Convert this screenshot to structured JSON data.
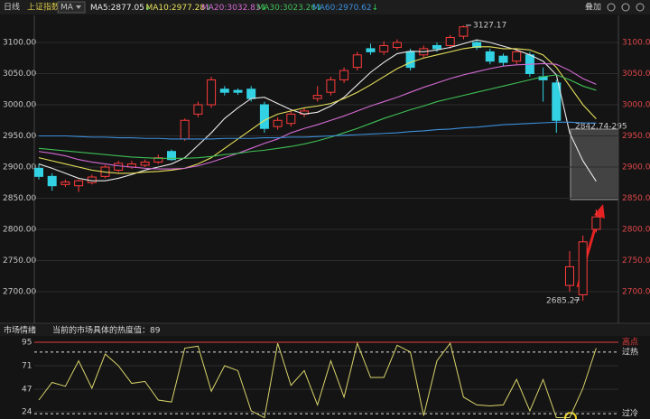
{
  "header": {
    "period": "日线",
    "index": "上证指数",
    "indicator": "MA",
    "toolbar": "叠加"
  },
  "chart_data": [
    {
      "type": "candlestick",
      "ohlc": [
        [
          2898,
          2905,
          2880,
          2885
        ],
        [
          2885,
          2890,
          2862,
          2870
        ],
        [
          2872,
          2880,
          2868,
          2876
        ],
        [
          2870,
          2880,
          2860,
          2878
        ],
        [
          2875,
          2888,
          2872,
          2884
        ],
        [
          2885,
          2903,
          2882,
          2900
        ],
        [
          2895,
          2910,
          2892,
          2906
        ],
        [
          2900,
          2910,
          2897,
          2905
        ],
        [
          2903,
          2912,
          2900,
          2908
        ],
        [
          2908,
          2920,
          2905,
          2915
        ],
        [
          2925,
          2928,
          2910,
          2912
        ],
        [
          2945,
          2978,
          2942,
          2975
        ],
        [
          2985,
          3005,
          2980,
          3000
        ],
        [
          3000,
          3045,
          2995,
          3040
        ],
        [
          3025,
          3030,
          3015,
          3020
        ],
        [
          3023,
          3026,
          3016,
          3020
        ],
        [
          3025,
          3030,
          3005,
          3010
        ],
        [
          3000,
          3005,
          2955,
          2962
        ],
        [
          2965,
          2980,
          2960,
          2975
        ],
        [
          2970,
          2990,
          2965,
          2985
        ],
        [
          2985,
          2995,
          2980,
          2990
        ],
        [
          3010,
          3030,
          3005,
          3015
        ],
        [
          3020,
          3045,
          3015,
          3040
        ],
        [
          3040,
          3060,
          3035,
          3055
        ],
        [
          3060,
          3085,
          3055,
          3080
        ],
        [
          3090,
          3098,
          3080,
          3085
        ],
        [
          3085,
          3102,
          3080,
          3095
        ],
        [
          3092,
          3105,
          3088,
          3100
        ],
        [
          3085,
          3090,
          3055,
          3060
        ],
        [
          3080,
          3095,
          3075,
          3090
        ],
        [
          3095,
          3100,
          3085,
          3090
        ],
        [
          3095,
          3112,
          3090,
          3108
        ],
        [
          3110,
          3127.17,
          3105,
          3125
        ],
        [
          3100,
          3105,
          3088,
          3092
        ],
        [
          3085,
          3090,
          3065,
          3070
        ],
        [
          3078,
          3082,
          3062,
          3068
        ],
        [
          3070,
          3090,
          3065,
          3085
        ],
        [
          3080,
          3085,
          3045,
          3050
        ],
        [
          3045,
          3060,
          3005,
          3040
        ],
        [
          3035,
          3040,
          2955,
          2975
        ],
        [
          2710,
          2765,
          2700,
          2740
        ],
        [
          2695,
          2790,
          2685.27,
          2780
        ],
        [
          2800,
          2832,
          2795,
          2820
        ]
      ],
      "up_color": "#ff3b3b",
      "down_color": "#32d2e4",
      "series": [
        {
          "name": "MA5:2877.05",
          "trend": "↓",
          "color": "#e8e8e8",
          "values": [
            2905,
            2898,
            2890,
            2882,
            2878,
            2878,
            2882,
            2888,
            2895,
            2900,
            2905,
            2915,
            2935,
            2955,
            2978,
            2995,
            3010,
            3012,
            3002,
            2992,
            2985,
            2988,
            2998,
            3012,
            3032,
            3052,
            3068,
            3082,
            3086,
            3085,
            3088,
            3092,
            3098,
            3104,
            3100,
            3094,
            3088,
            3080,
            3070,
            3048,
            2955,
            2910,
            2877.05
          ]
        },
        {
          "name": "MA10:2977.28",
          "trend": "↓",
          "color": "#e6e05a",
          "values": [
            2915,
            2910,
            2905,
            2900,
            2895,
            2892,
            2890,
            2890,
            2892,
            2893,
            2895,
            2898,
            2905,
            2915,
            2930,
            2945,
            2960,
            2975,
            2985,
            2990,
            2995,
            2998,
            3002,
            3010,
            3020,
            3032,
            3045,
            3058,
            3068,
            3075,
            3080,
            3085,
            3090,
            3093,
            3093,
            3090,
            3090,
            3088,
            3080,
            3060,
            3030,
            3000,
            2977.28
          ]
        },
        {
          "name": "MA20:3032.83",
          "trend": "↓",
          "color": "#d46ad4",
          "values": [
            2925,
            2922,
            2918,
            2912,
            2908,
            2905,
            2902,
            2900,
            2898,
            2897,
            2897,
            2898,
            2902,
            2908,
            2915,
            2922,
            2930,
            2938,
            2945,
            2955,
            2962,
            2968,
            2975,
            2982,
            2990,
            2998,
            3005,
            3012,
            3020,
            3028,
            3035,
            3042,
            3048,
            3053,
            3058,
            3062,
            3064,
            3065,
            3066,
            3065,
            3055,
            3042,
            3032.83
          ]
        },
        {
          "name": "MA30:3023.26",
          "trend": "↓",
          "color": "#3fbf55",
          "values": [
            2930,
            2928,
            2926,
            2924,
            2922,
            2920,
            2918,
            2916,
            2915,
            2914,
            2914,
            2914,
            2915,
            2917,
            2920,
            2922,
            2925,
            2927,
            2930,
            2933,
            2937,
            2942,
            2948,
            2955,
            2962,
            2970,
            2978,
            2985,
            2992,
            2998,
            3005,
            3010,
            3015,
            3020,
            3025,
            3030,
            3035,
            3040,
            3045,
            3048,
            3040,
            3030,
            3023.26
          ]
        },
        {
          "name": "MA60:2970.62",
          "trend": "↓",
          "color": "#3c8fdc",
          "values": [
            2950,
            2950,
            2950,
            2949,
            2948,
            2948,
            2947,
            2947,
            2946,
            2946,
            2945,
            2945,
            2945,
            2945,
            2946,
            2946,
            2946,
            2947,
            2947,
            2948,
            2948,
            2949,
            2950,
            2951,
            2952,
            2953,
            2954,
            2955,
            2957,
            2958,
            2960,
            2961,
            2963,
            2964,
            2966,
            2968,
            2969,
            2970,
            2971,
            2972,
            2972,
            2971,
            2970.62
          ]
        }
      ],
      "trend_color": "#2fd05a",
      "annotations": [
        "3127.17",
        "2842.74-295",
        "2685.27"
      ],
      "ylim": [
        2650,
        3140
      ],
      "yticks": [
        {
          "value": 2700,
          "label": "2700.00"
        },
        {
          "value": 2750,
          "label": "2750.00"
        },
        {
          "value": 2800,
          "label": "2800.00"
        },
        {
          "value": 2850,
          "label": "2850.00"
        },
        {
          "value": 2900,
          "label": "2900.00"
        },
        {
          "value": 2950,
          "label": "2950.00"
        },
        {
          "value": 3000,
          "label": "3000.00"
        },
        {
          "value": 3050,
          "label": "3050.00"
        },
        {
          "value": 3100,
          "label": "3100.00"
        }
      ],
      "grid": true
    },
    {
      "type": "line",
      "title": "市场情绪",
      "subtitle": "当前的市场具体的热度值：89",
      "color": "#d8d36a",
      "values": [
        36,
        54,
        50,
        76,
        48,
        83,
        71,
        53,
        55,
        36,
        34,
        89,
        91,
        45,
        71,
        66,
        25,
        18,
        94,
        51,
        66,
        31,
        76,
        39,
        94,
        59,
        59,
        92,
        85,
        20,
        76,
        94,
        39,
        31,
        30,
        31,
        57,
        25,
        57,
        18,
        18,
        48,
        89
      ],
      "ylim": [
        17,
        101
      ],
      "yticks": [
        24,
        47,
        71,
        95
      ],
      "reference_lines": [
        {
          "value": 95,
          "label": "高点",
          "color": "#e03b3b",
          "dashed": false
        },
        {
          "value": 85,
          "label": "过热",
          "color": "#dddddd",
          "dashed": true
        },
        {
          "value": 22,
          "label": "过冷",
          "color": "#dddddd",
          "dashed": true
        }
      ],
      "grid": true
    }
  ]
}
